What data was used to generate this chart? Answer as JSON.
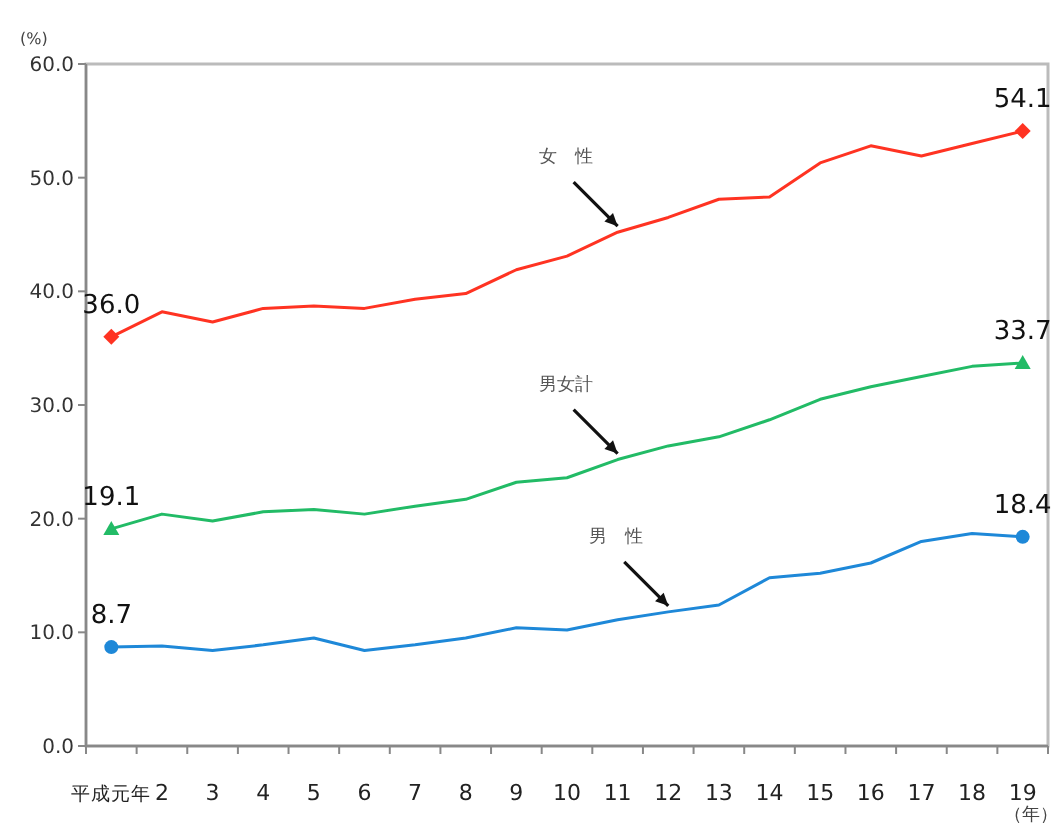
{
  "chart_data": {
    "type": "line",
    "ylabel": "(%)",
    "xlabel": "（年）",
    "categories": [
      "平成元年",
      "2",
      "3",
      "4",
      "5",
      "6",
      "7",
      "8",
      "9",
      "10",
      "11",
      "12",
      "13",
      "14",
      "15",
      "16",
      "17",
      "18",
      "19"
    ],
    "ylim": [
      0,
      60
    ],
    "yticks": [
      {
        "value": 0,
        "label": "0.0"
      },
      {
        "value": 10,
        "label": "10.0"
      },
      {
        "value": 20,
        "label": "20.0"
      },
      {
        "value": 30,
        "label": "30.0"
      },
      {
        "value": 40,
        "label": "40.0"
      },
      {
        "value": 50,
        "label": "50.0"
      },
      {
        "value": 60,
        "label": "60.0"
      }
    ],
    "grid": false,
    "series": [
      {
        "color": "#ff3322",
        "values": [
          36.0,
          38.2,
          37.3,
          38.5,
          38.7,
          38.5,
          39.3,
          39.8,
          41.9,
          43.1,
          45.2,
          46.5,
          48.1,
          48.3,
          51.3,
          52.8,
          51.9,
          53.0,
          54.1
        ],
        "value_labels": [
          "36.0",
          null,
          null,
          null,
          null,
          null,
          null,
          null,
          null,
          null,
          null,
          null,
          null,
          null,
          null,
          null,
          null,
          null,
          "54.1"
        ]
      },
      {
        "color": "#22bb66",
        "values": [
          19.1,
          20.4,
          19.8,
          20.6,
          20.8,
          20.4,
          21.1,
          21.7,
          23.2,
          23.6,
          25.2,
          26.4,
          27.2,
          28.7,
          30.5,
          31.6,
          32.5,
          33.4,
          33.7
        ],
        "value_labels": [
          "19.1",
          null,
          null,
          null,
          null,
          null,
          null,
          null,
          null,
          null,
          null,
          null,
          null,
          null,
          null,
          null,
          null,
          null,
          "33.7"
        ]
      },
      {
        "color": "#1e88d8",
        "values": [
          8.7,
          8.8,
          8.4,
          8.9,
          9.5,
          8.4,
          8.9,
          9.5,
          10.4,
          10.2,
          11.1,
          11.8,
          12.4,
          14.8,
          15.2,
          16.1,
          18.0,
          18.7,
          18.4
        ],
        "value_labels": [
          "8.7",
          null,
          null,
          null,
          null,
          null,
          null,
          null,
          null,
          null,
          null,
          null,
          null,
          null,
          null,
          null,
          null,
          null,
          "18.4"
        ]
      }
    ],
    "annotations": [
      {
        "text": "女　性",
        "x": "11",
        "y": 45.2
      },
      {
        "text": "男女計",
        "x": "11",
        "y": 25.2
      },
      {
        "text": "男　性",
        "x": "12",
        "y": 11.8
      }
    ]
  }
}
